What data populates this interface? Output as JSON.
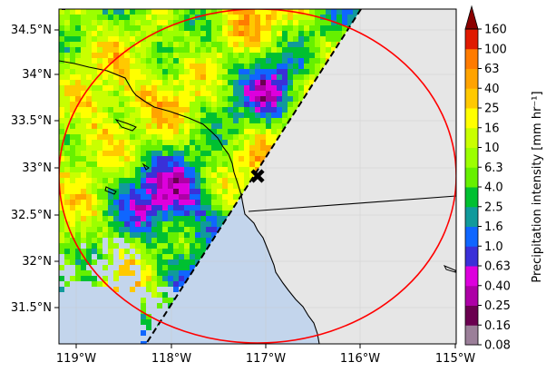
{
  "map": {
    "lat_ticks": [
      "34.5°N",
      "34°N",
      "33.5°N",
      "33°N",
      "32.5°N",
      "32°N",
      "31.5°N"
    ],
    "lon_ticks": [
      "119°W",
      "118°W",
      "117°W",
      "116°W",
      "115°W"
    ],
    "extent": {
      "lon_min": -119.2,
      "lon_max": -114.95,
      "lat_min": 31.1,
      "lat_max": 34.72
    },
    "colors": {
      "land_background": "#e6e6e6",
      "ocean": "#c3d5ec",
      "range_circle": "#ff0000",
      "scan_edge": "#000000",
      "radar_marker": "#000000"
    },
    "radar_site_marker": "x-marker",
    "range_ring": "circle"
  },
  "colorbar": {
    "title": "Precipitation intensity [mm hr⁻¹]",
    "tick_labels": [
      "0.08",
      "0.16",
      "0.25",
      "0.40",
      "0.63",
      "1.0",
      "1.6",
      "2.5",
      "4.0",
      "6.3",
      "10",
      "16",
      "25",
      "40",
      "63",
      "100",
      "160"
    ],
    "colors": [
      "#9b7f99",
      "#6a0050",
      "#ad00a6",
      "#dd00dd",
      "#3a30d8",
      "#0f66ff",
      "#119a9c",
      "#00c031",
      "#66f000",
      "#9cff00",
      "#c9ff00",
      "#ffff00",
      "#ffc900",
      "#ffa300",
      "#ff7b00",
      "#e01a00"
    ],
    "over_color": "#8b0000"
  }
}
